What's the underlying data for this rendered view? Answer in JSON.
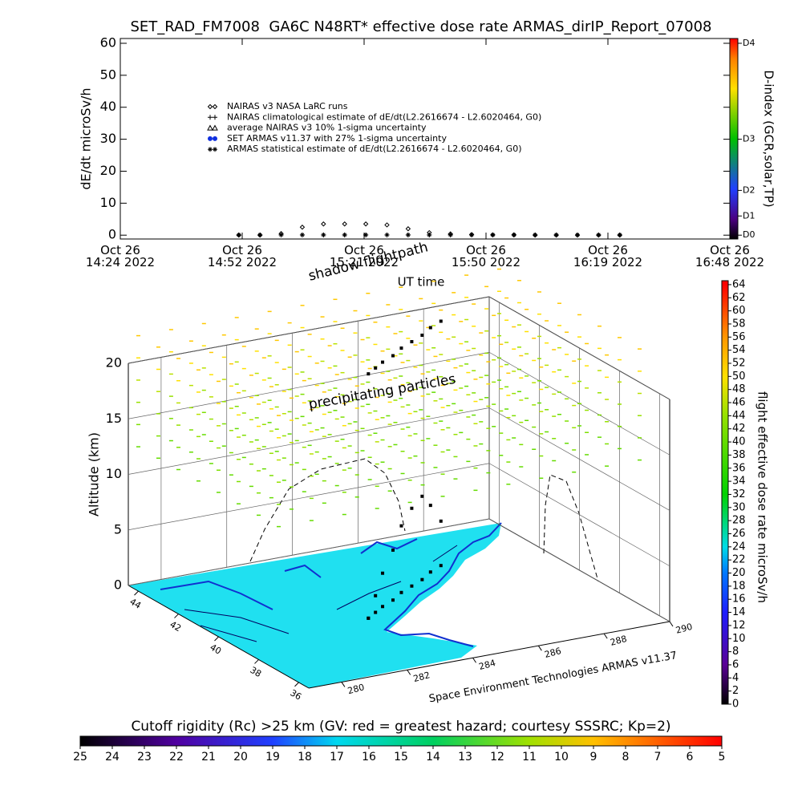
{
  "chart_data": [
    {
      "type": "line",
      "title": "SET_RAD_FM7008  GA6C N48RT* effective dose rate ARMAS_dirIP_Report_07008",
      "y_label": "dE/dt microSv/h",
      "x_label": "UT time",
      "xlim": [
        "2022-10-26T14:24:00",
        "2022-10-26T16:48:00"
      ],
      "xticks": [
        {
          "value": "2022-10-26T14:24:00",
          "label": "Oct 26\n14:24 2022"
        },
        {
          "value": "2022-10-26T14:52:48",
          "label": "Oct 26\n14:52 2022"
        },
        {
          "value": "2022-10-26T15:21:36",
          "label": "Oct 26\n15:21 2022"
        },
        {
          "value": "2022-10-26T15:50:24",
          "label": "Oct 26\n15:50 2022"
        },
        {
          "value": "2022-10-26T16:19:12",
          "label": "Oct 26\n16:19 2022"
        },
        {
          "value": "2022-10-26T16:48:00",
          "label": "Oct 26\n16:48 2022"
        }
      ],
      "ylim": [
        -1.2,
        61.5
      ],
      "yticks": [
        0,
        10,
        20,
        30,
        40,
        50,
        60
      ],
      "x": [
        "2022-10-26T14:52:00",
        "2022-10-26T14:57:00",
        "2022-10-26T15:02:00",
        "2022-10-26T15:07:00",
        "2022-10-26T15:12:00",
        "2022-10-26T15:17:00",
        "2022-10-26T15:22:00",
        "2022-10-26T15:27:00",
        "2022-10-26T15:32:00",
        "2022-10-26T15:37:00",
        "2022-10-26T15:42:00",
        "2022-10-26T15:47:00",
        "2022-10-26T15:52:00",
        "2022-10-26T15:57:00",
        "2022-10-26T16:02:00",
        "2022-10-26T16:07:00",
        "2022-10-26T16:12:00",
        "2022-10-26T16:17:00",
        "2022-10-26T16:22:00"
      ],
      "series": [
        {
          "name": "NAIRAS v3 NASA LaRC runs",
          "marker": "diamond",
          "color": "#000000",
          "values": [
            0,
            0,
            0.5,
            2.5,
            3.5,
            3.5,
            3.5,
            3.2,
            2,
            0.8,
            0.4,
            0.2,
            0.1,
            0.1,
            0,
            0,
            0,
            0,
            0
          ]
        },
        {
          "name": "NAIRAS climatological estimate of dE/dt(L2.2616674 - L2.6020464, G0)",
          "marker": "plus",
          "color": "#000000",
          "values": [
            0.05,
            0.05,
            0.05,
            0.05,
            0.05,
            0.05,
            0.05,
            0.05,
            0.05,
            0.05,
            0.05,
            0.05,
            0.05,
            0.05,
            0.05,
            0.05,
            0.05,
            0.05,
            0.05
          ]
        },
        {
          "name": "average NAIRAS v3 10% 1-sigma uncertainty",
          "marker": "triangle",
          "color": "#000000",
          "values": [
            null,
            null,
            null,
            null,
            null,
            null,
            null,
            null,
            null,
            null,
            null,
            null,
            null,
            null,
            null,
            null,
            null,
            null,
            null
          ]
        },
        {
          "name": "SET ARMAS v11.37 with 27% 1-sigma uncertainty",
          "marker": "dot",
          "color": "#1030e0",
          "values": [
            null,
            null,
            null,
            null,
            null,
            null,
            null,
            null,
            null,
            null,
            null,
            null,
            null,
            null,
            null,
            null,
            null,
            null,
            null
          ]
        },
        {
          "name": "ARMAS statistical estimate of dE/dt(L2.2616674 - L2.6020464, G0)",
          "marker": "asterisk",
          "color": "#000000",
          "values": [
            0.1,
            0.1,
            0.1,
            0.1,
            0.1,
            0.1,
            0.1,
            0.1,
            0.1,
            0.1,
            0.1,
            0.1,
            0.1,
            0.1,
            0.1,
            0.1,
            0.1,
            0.1,
            0.1
          ]
        }
      ],
      "colorbar": {
        "label": "D-index (GCR,solar,TP)",
        "ticks": [
          {
            "value": 0,
            "label": "D0"
          },
          {
            "value": 6,
            "label": "D1"
          },
          {
            "value": 14,
            "label": "D2"
          },
          {
            "value": 30,
            "label": "D3"
          },
          {
            "value": 60,
            "label": "D4"
          }
        ]
      }
    },
    {
      "type": "flight3d",
      "z_label": "Altitude (km)",
      "zlim": [
        0,
        20
      ],
      "zticks": [
        0,
        5,
        10,
        15,
        20
      ],
      "lat_lim": [
        44.5,
        35.5
      ],
      "lat_ticks": [
        44,
        42,
        40,
        38,
        36
      ],
      "lon_lim": [
        279,
        290
      ],
      "lon_ticks": [
        280,
        282,
        284,
        286,
        288,
        290
      ],
      "annotations": [
        "shadow flightpath",
        "precipitating particles",
        "Space Environment Technologies ARMAS v11.37"
      ],
      "flight": {
        "lon": [
          283.2,
          283.6,
          284,
          284.5,
          285,
          285.5,
          286,
          286.5,
          287
        ],
        "lat": [
          39.4,
          39.7,
          40,
          40.3,
          40.7,
          41,
          41.3,
          41.7,
          42
        ],
        "alt": [
          0,
          1.5,
          3,
          4.5,
          6,
          7,
          7.5,
          6,
          4
        ],
        "shadow_altitude": 22
      },
      "precip": {
        "lons": [
          279,
          280,
          281,
          282,
          283,
          284,
          285,
          286,
          287,
          288,
          289,
          290
        ],
        "lats": [
          44,
          43,
          42,
          41,
          40,
          39,
          38,
          37
        ],
        "alts": [
          13,
          15,
          17,
          19,
          21,
          23
        ],
        "dose": [
          40,
          42,
          44,
          46,
          50,
          52
        ]
      }
    },
    {
      "type": "colorbar",
      "label": "flight effective dose rate microSv/h",
      "lim": [
        0,
        64.6
      ],
      "ticks": [
        0,
        2,
        4,
        6,
        8,
        10,
        12,
        14,
        16,
        18,
        20,
        22,
        24,
        26,
        28,
        30,
        32,
        34,
        36,
        38,
        40,
        42,
        44,
        46,
        48,
        50,
        52,
        54,
        56,
        58,
        60,
        62,
        64
      ]
    },
    {
      "type": "colorbar",
      "label": "Cutoff rigidity (Rc) >25 km (GV: red = greatest hazard; courtesy SSSRC; Kp=2)",
      "lim": [
        25,
        5
      ],
      "ticks": [
        25,
        24,
        23,
        22,
        21,
        20,
        19,
        18,
        17,
        16,
        15,
        14,
        13,
        12,
        11,
        10,
        9,
        8,
        7,
        6,
        5
      ]
    }
  ]
}
